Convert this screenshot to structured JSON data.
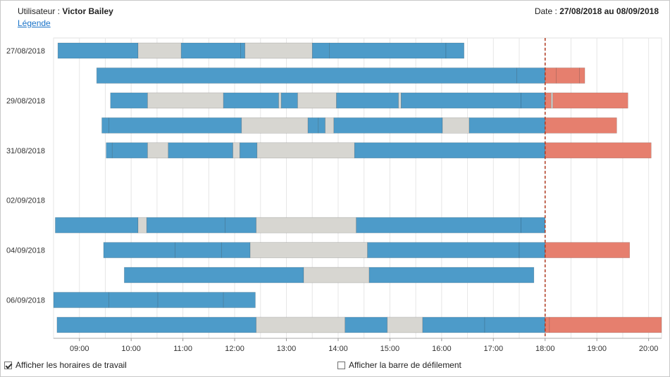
{
  "header": {
    "user_label": "Utilisateur :",
    "user_name": "Victor Bailey",
    "date_label": "Date :",
    "date_range": "27/08/2018 au 08/09/2018",
    "legend_link": "Légende"
  },
  "options": {
    "work_hours": {
      "label": "Afficher les horaires de travail",
      "checked": true
    },
    "scrollbar": {
      "label": "Afficher la barre de défilement",
      "checked": false
    }
  },
  "chart_data": {
    "type": "gantt",
    "x_range": [
      "08:30",
      "20:15"
    ],
    "x_ticks": [
      "09:00",
      "10:00",
      "11:00",
      "12:00",
      "13:00",
      "14:00",
      "15:00",
      "16:00",
      "17:00",
      "18:00",
      "19:00",
      "20:00"
    ],
    "y_tick_labels": [
      "27/08/2018",
      "29/08/2018",
      "31/08/2018",
      "02/09/2018",
      "04/09/2018",
      "06/09/2018"
    ],
    "marker_time": "18:00",
    "colors": {
      "work": "#4d9bc9",
      "pause": "#d7d6d1",
      "overtime": "#e67f6e",
      "marker": "#b03a20"
    },
    "rows": [
      {
        "date": "27/08/2018",
        "segments": [
          [
            "08:35",
            "10:08",
            "work"
          ],
          [
            "10:08",
            "10:58",
            "pause"
          ],
          [
            "10:58",
            "12:07",
            "work"
          ],
          [
            "12:07",
            "12:12",
            "work"
          ],
          [
            "12:12",
            "13:30",
            "pause"
          ],
          [
            "13:30",
            "13:50",
            "work"
          ],
          [
            "13:50",
            "16:05",
            "work"
          ],
          [
            "16:05",
            "16:26",
            "work"
          ]
        ]
      },
      {
        "date": "28/08/2018",
        "segments": [
          [
            "09:20",
            "17:27",
            "work"
          ],
          [
            "17:27",
            "18:00",
            "work"
          ],
          [
            "18:00",
            "18:13",
            "overtime"
          ],
          [
            "18:13",
            "18:40",
            "overtime"
          ],
          [
            "18:40",
            "18:46",
            "overtime"
          ]
        ]
      },
      {
        "date": "29/08/2018",
        "segments": [
          [
            "09:36",
            "10:19",
            "work"
          ],
          [
            "10:19",
            "11:47",
            "pause"
          ],
          [
            "11:47",
            "12:51",
            "work"
          ],
          [
            "12:51",
            "12:54",
            "pause"
          ],
          [
            "12:54",
            "13:13",
            "work"
          ],
          [
            "13:13",
            "13:58",
            "pause"
          ],
          [
            "13:58",
            "15:10",
            "work"
          ],
          [
            "15:10",
            "15:13",
            "pause"
          ],
          [
            "15:13",
            "17:32",
            "work"
          ],
          [
            "17:32",
            "18:00",
            "work"
          ],
          [
            "18:00",
            "18:07",
            "overtime"
          ],
          [
            "18:07",
            "18:09",
            "pause"
          ],
          [
            "18:09",
            "19:36",
            "overtime"
          ]
        ]
      },
      {
        "date": "30/08/2018",
        "segments": [
          [
            "09:26",
            "09:34",
            "work"
          ],
          [
            "09:34",
            "12:08",
            "work"
          ],
          [
            "12:08",
            "13:25",
            "pause"
          ],
          [
            "13:25",
            "13:37",
            "work"
          ],
          [
            "13:37",
            "13:45",
            "work"
          ],
          [
            "13:45",
            "13:55",
            "pause"
          ],
          [
            "13:55",
            "16:01",
            "work"
          ],
          [
            "16:01",
            "16:32",
            "pause"
          ],
          [
            "16:32",
            "18:00",
            "work"
          ],
          [
            "18:00",
            "19:23",
            "overtime"
          ]
        ]
      },
      {
        "date": "31/08/2018",
        "segments": [
          [
            "09:31",
            "09:38",
            "work"
          ],
          [
            "09:38",
            "10:19",
            "work"
          ],
          [
            "10:19",
            "10:43",
            "pause"
          ],
          [
            "10:43",
            "11:58",
            "work"
          ],
          [
            "11:58",
            "12:06",
            "pause"
          ],
          [
            "12:06",
            "12:26",
            "work"
          ],
          [
            "12:26",
            "14:19",
            "pause"
          ],
          [
            "14:19",
            "18:00",
            "work"
          ],
          [
            "18:00",
            "20:03",
            "overtime"
          ]
        ]
      },
      {
        "date": "01/09/2018",
        "segments": []
      },
      {
        "date": "02/09/2018",
        "segments": []
      },
      {
        "date": "03/09/2018",
        "segments": [
          [
            "08:32",
            "10:08",
            "work"
          ],
          [
            "10:08",
            "10:18",
            "pause"
          ],
          [
            "10:18",
            "11:49",
            "work"
          ],
          [
            "11:49",
            "12:25",
            "work"
          ],
          [
            "12:25",
            "14:21",
            "pause"
          ],
          [
            "14:21",
            "17:32",
            "work"
          ],
          [
            "17:32",
            "18:00",
            "work"
          ]
        ]
      },
      {
        "date": "04/09/2018",
        "segments": [
          [
            "09:28",
            "10:51",
            "work"
          ],
          [
            "10:51",
            "11:45",
            "work"
          ],
          [
            "11:45",
            "12:18",
            "work"
          ],
          [
            "12:18",
            "14:34",
            "pause"
          ],
          [
            "14:34",
            "17:30",
            "work"
          ],
          [
            "17:30",
            "18:00",
            "work"
          ],
          [
            "18:00",
            "19:38",
            "overtime"
          ]
        ]
      },
      {
        "date": "05/09/2018",
        "segments": [
          [
            "09:52",
            "13:20",
            "work"
          ],
          [
            "13:20",
            "14:36",
            "pause"
          ],
          [
            "14:36",
            "17:47",
            "work"
          ]
        ]
      },
      {
        "date": "06/09/2018",
        "segments": [
          [
            "08:30",
            "09:34",
            "work"
          ],
          [
            "09:34",
            "10:31",
            "work"
          ],
          [
            "10:31",
            "11:47",
            "work"
          ],
          [
            "11:47",
            "12:24",
            "work"
          ]
        ]
      },
      {
        "date": "07/09/2018",
        "segments": [
          [
            "08:34",
            "12:25",
            "work"
          ],
          [
            "12:25",
            "14:08",
            "pause"
          ],
          [
            "14:08",
            "14:57",
            "work"
          ],
          [
            "14:57",
            "15:38",
            "pause"
          ],
          [
            "15:38",
            "16:50",
            "work"
          ],
          [
            "16:50",
            "18:00",
            "work"
          ],
          [
            "18:00",
            "18:05",
            "overtime"
          ],
          [
            "18:05",
            "20:15",
            "overtime"
          ]
        ]
      }
    ]
  }
}
